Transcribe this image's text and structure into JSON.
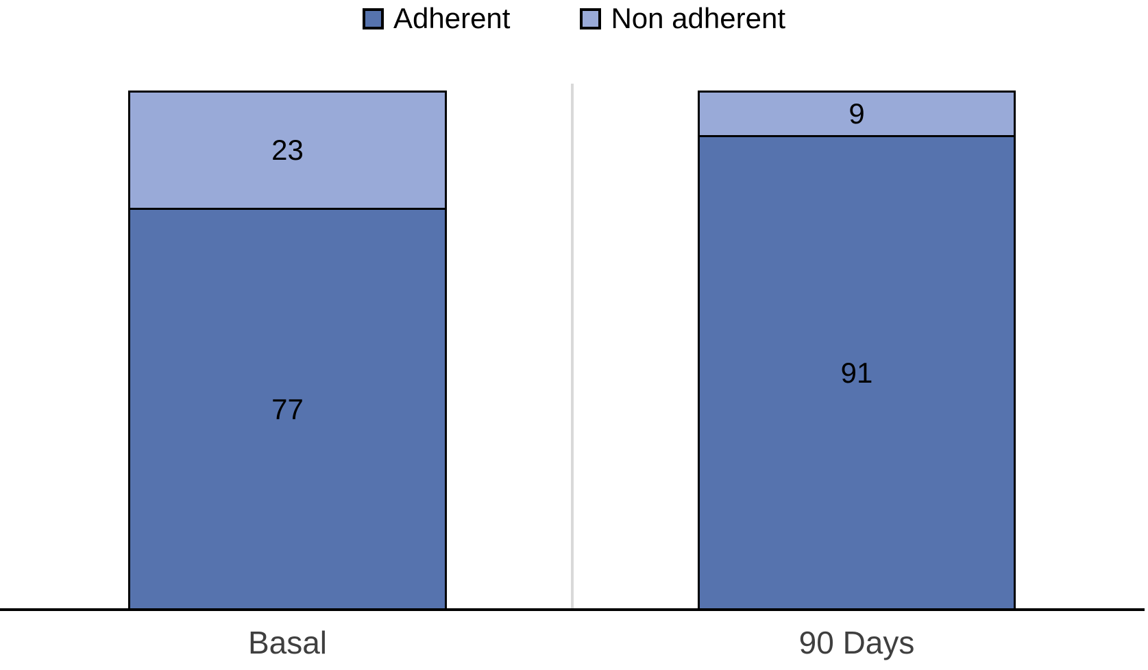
{
  "chart_data": {
    "type": "bar",
    "stacked": true,
    "orientation": "vertical",
    "categories": [
      "Basal",
      "90 Days"
    ],
    "series": [
      {
        "name": "Adherent",
        "color": "#5673AE",
        "values": [
          77,
          91
        ]
      },
      {
        "name": "Non adherent",
        "color": "#99AAD8",
        "values": [
          23,
          9
        ]
      }
    ],
    "title": "",
    "xlabel": "",
    "ylabel": "",
    "ylim": [
      0,
      100
    ],
    "grid": false,
    "legend_position": "top",
    "value_labels_shown": true
  },
  "colors": {
    "adherent": "#5673AE",
    "non_adherent": "#99AAD8",
    "segment_border": "#000000",
    "axis_line": "#000000",
    "divider_line": "#D9D9D9",
    "category_label": "#3F3F3F",
    "value_label": "#000000",
    "background": "#FFFFFF"
  }
}
